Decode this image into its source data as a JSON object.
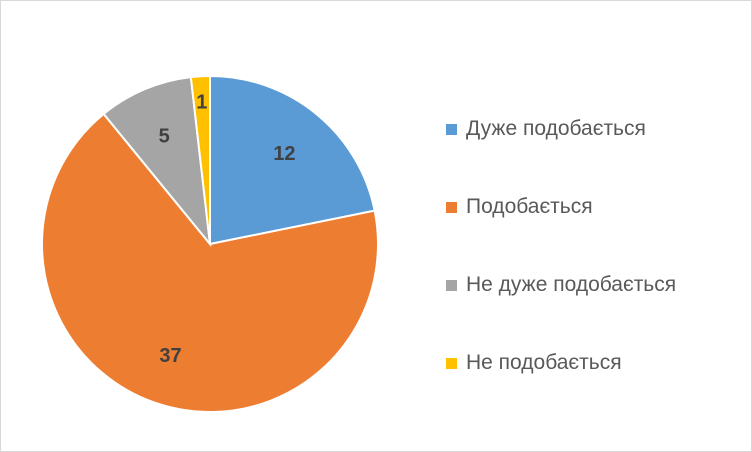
{
  "chart_data": {
    "type": "pie",
    "categories": [
      "Дуже подобається",
      "Подобається",
      "Не дуже подобається",
      "Не подобається"
    ],
    "values": [
      12,
      37,
      5,
      1
    ],
    "colors": [
      "#5b9bd5",
      "#ed7d31",
      "#a5a5a5",
      "#ffc000"
    ],
    "data_labels": [
      "12",
      "37",
      "5",
      "1"
    ],
    "title": "",
    "legend_position": "right",
    "start_angle": "12 o'clock",
    "direction": "clockwise"
  }
}
